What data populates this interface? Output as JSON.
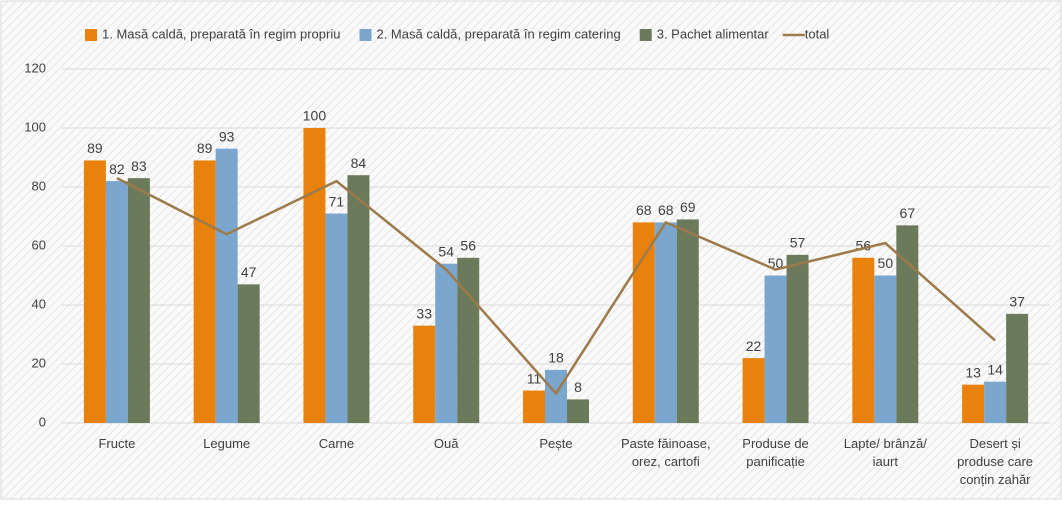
{
  "chart_data": {
    "type": "bar",
    "categories": [
      "Fructe",
      "Legume",
      "Carne",
      "Ouă",
      "Pește",
      "Paste făinoase, orez, cartofi",
      "Produse de panificație",
      "Lapte/ brânză/ iaurt",
      "Desert și produse care conțin zahăr"
    ],
    "series": [
      {
        "name": "1. Masă caldă, preparată în regim propriu",
        "color": "#e8820c",
        "values": [
          89,
          89,
          100,
          33,
          11,
          68,
          22,
          56,
          13
        ]
      },
      {
        "name": "2. Masă caldă, preparată în regim catering",
        "color": "#7ba7cf",
        "values": [
          82,
          93,
          71,
          54,
          18,
          68,
          50,
          50,
          14
        ]
      },
      {
        "name": "3. Pachet alimentar",
        "color": "#6b7a5b",
        "values": [
          83,
          47,
          84,
          56,
          8,
          69,
          57,
          67,
          37
        ]
      },
      {
        "name": "total",
        "type": "line",
        "color": "#9c7a4a",
        "values": [
          83,
          64,
          82,
          52,
          10,
          68,
          52,
          61,
          28
        ]
      }
    ],
    "ylim": [
      0,
      120
    ],
    "yticks": [
      0,
      20,
      40,
      60,
      80,
      100,
      120
    ],
    "legend": "top"
  }
}
